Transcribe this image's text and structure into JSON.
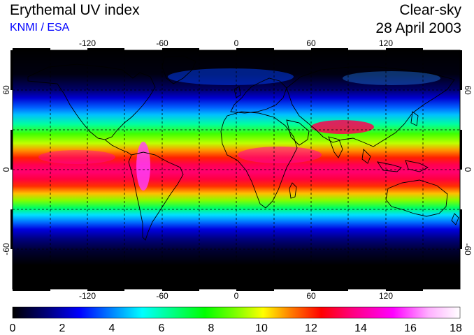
{
  "header": {
    "title": "Erythemal UV index",
    "subtitle": "KNMI / ESA",
    "condition": "Clear-sky",
    "date": "28 April 2003"
  },
  "map": {
    "projection": "equirectangular",
    "lon_range": [
      -180,
      180
    ],
    "lat_range": [
      -90,
      90
    ],
    "lon_ticks": [
      "-120",
      "-60",
      "0",
      "60",
      "120"
    ],
    "lat_ticks": [
      "60",
      "0",
      "-60"
    ],
    "grid": "dashed, every 30 degrees",
    "coastlines": true
  },
  "colorbar": {
    "min": 0,
    "max": 18,
    "labels": [
      "0",
      "2",
      "4",
      "6",
      "8",
      "10",
      "12",
      "14",
      "16",
      "18"
    ],
    "stops": [
      "#000000",
      "#000080",
      "#0000ff",
      "#0080ff",
      "#00ffff",
      "#00ff80",
      "#00ff00",
      "#80ff00",
      "#ffff00",
      "#ff8000",
      "#ff0000",
      "#ff0080",
      "#ff00ff",
      "#ffc0ff",
      "#ffffff"
    ]
  }
}
